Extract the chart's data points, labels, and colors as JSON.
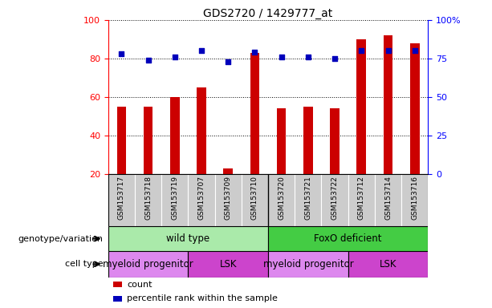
{
  "title": "GDS2720 / 1429777_at",
  "samples": [
    "GSM153717",
    "GSM153718",
    "GSM153719",
    "GSM153707",
    "GSM153709",
    "GSM153710",
    "GSM153720",
    "GSM153721",
    "GSM153722",
    "GSM153712",
    "GSM153714",
    "GSM153716"
  ],
  "counts": [
    55,
    55,
    60,
    65,
    23,
    83,
    54,
    55,
    54,
    90,
    92,
    88
  ],
  "percentiles": [
    78,
    74,
    76,
    80,
    73,
    79,
    76,
    76,
    75,
    80,
    80,
    80
  ],
  "ylim_left": [
    20,
    100
  ],
  "ylim_right": [
    0,
    100
  ],
  "yticks_left": [
    20,
    40,
    60,
    80,
    100
  ],
  "yticks_right": [
    0,
    25,
    50,
    75,
    100
  ],
  "ytick_labels_right": [
    "0",
    "25",
    "50",
    "75",
    "100%"
  ],
  "bar_color": "#cc0000",
  "dot_color": "#0000bb",
  "genotype_groups": [
    {
      "label": "wild type",
      "start": 0,
      "end": 6,
      "color": "#aaeaaa"
    },
    {
      "label": "FoxO deficient",
      "start": 6,
      "end": 12,
      "color": "#44cc44"
    }
  ],
  "celltype_groups": [
    {
      "label": "myeloid progenitor",
      "start": 0,
      "end": 3,
      "color": "#dd88ee"
    },
    {
      "label": "LSK",
      "start": 3,
      "end": 6,
      "color": "#cc44cc"
    },
    {
      "label": "myeloid progenitor",
      "start": 6,
      "end": 9,
      "color": "#dd88ee"
    },
    {
      "label": "LSK",
      "start": 9,
      "end": 12,
      "color": "#cc44cc"
    }
  ],
  "legend_items": [
    {
      "label": "count",
      "color": "#cc0000"
    },
    {
      "label": "percentile rank within the sample",
      "color": "#0000bb"
    }
  ],
  "sample_bg": "#cccccc",
  "divider_col": 5
}
